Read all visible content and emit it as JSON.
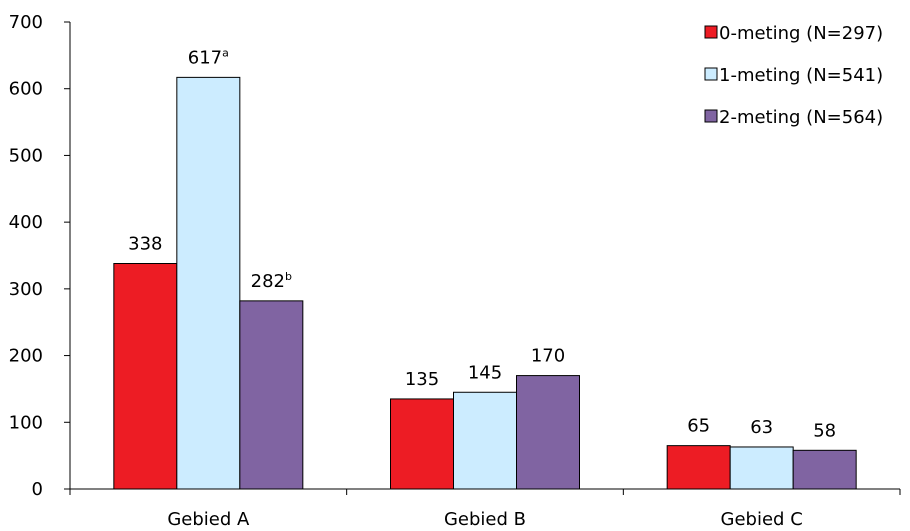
{
  "chart_data": {
    "type": "bar",
    "categories": [
      "Gebied A",
      "Gebied B",
      "Gebied C"
    ],
    "series": [
      {
        "name": "0-meting (N=297)",
        "color": "#ED1C24",
        "values": [
          338,
          135,
          65
        ],
        "labels": [
          "338",
          "135",
          "65"
        ],
        "superscripts": [
          "",
          "",
          ""
        ]
      },
      {
        "name": "1-meting (N=541)",
        "color": "#CCECFF",
        "values": [
          617,
          145,
          63
        ],
        "labels": [
          "617",
          "145",
          "63"
        ],
        "superscripts": [
          "a",
          "",
          ""
        ]
      },
      {
        "name": "2-meting (N=564)",
        "color": "#8064A2",
        "values": [
          282,
          170,
          58
        ],
        "labels": [
          "282",
          "170",
          "58"
        ],
        "superscripts": [
          "b",
          "",
          ""
        ]
      }
    ],
    "ylim": [
      0,
      700
    ],
    "yticks": [
      0,
      100,
      200,
      300,
      400,
      500,
      600,
      700
    ],
    "title": "",
    "xlabel": "",
    "ylabel": "",
    "grid": false,
    "legend_position": "top-right"
  }
}
